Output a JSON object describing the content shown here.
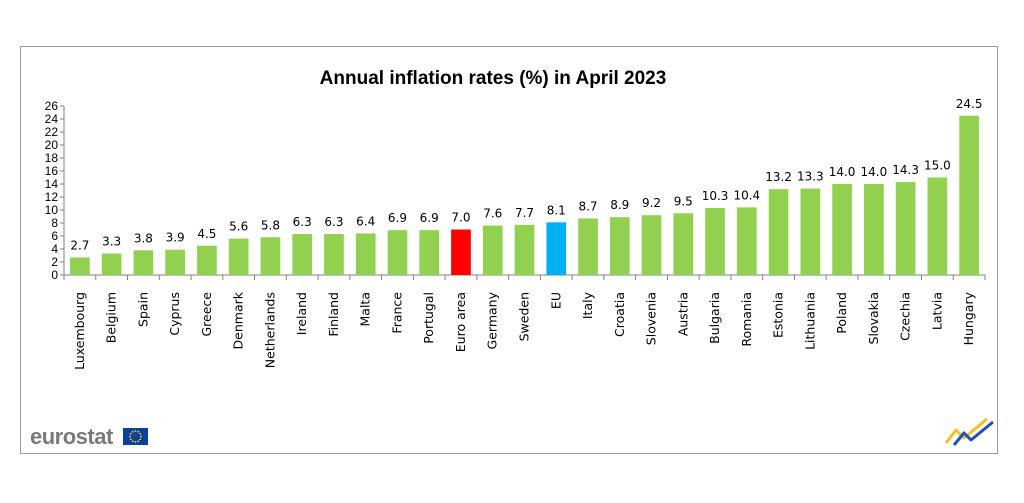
{
  "brand": {
    "name": "eurostat"
  },
  "chart_data": {
    "type": "bar",
    "title": "Annual inflation rates (%) in April 2023",
    "xlabel": "",
    "ylabel": "",
    "ylim": [
      0,
      26
    ],
    "yticks": [
      0,
      2,
      4,
      6,
      8,
      10,
      12,
      14,
      16,
      18,
      20,
      22,
      24,
      26
    ],
    "grid": false,
    "legend": "none",
    "categories": [
      "Luxembourg",
      "Belgium",
      "Spain",
      "Cyprus",
      "Greece",
      "Denmark",
      "Netherlands",
      "Ireland",
      "Finland",
      "Malta",
      "France",
      "Portugal",
      "Euro area",
      "Germany",
      "Sweden",
      "EU",
      "Italy",
      "Croatia",
      "Slovenia",
      "Austria",
      "Bulgaria",
      "Romania",
      "Estonia",
      "Lithuania",
      "Poland",
      "Slovakia",
      "Czechia",
      "Latvia",
      "Hungary"
    ],
    "values": [
      2.7,
      3.3,
      3.8,
      3.9,
      4.5,
      5.6,
      5.8,
      6.3,
      6.3,
      6.4,
      6.9,
      6.9,
      7.0,
      7.6,
      7.7,
      8.1,
      8.7,
      8.9,
      9.2,
      9.5,
      10.3,
      10.4,
      13.2,
      13.3,
      14.0,
      14.0,
      14.3,
      15.0,
      24.5
    ],
    "value_labels": [
      "2.7",
      "3.3",
      "3.8",
      "3.9",
      "4.5",
      "5.6",
      "5.8",
      "6.3",
      "6.3",
      "6.4",
      "6.9",
      "6.9",
      "7.0",
      "7.6",
      "7.7",
      "8.1",
      "8.7",
      "8.9",
      "9.2",
      "9.5",
      "10.3",
      "10.4",
      "13.2",
      "13.3",
      "14.0",
      "14.0",
      "14.3",
      "15.0",
      "24.5"
    ],
    "colors": {
      "default": "#92d050",
      "Euro area": "#ff0000",
      "EU": "#00b0f0"
    }
  }
}
